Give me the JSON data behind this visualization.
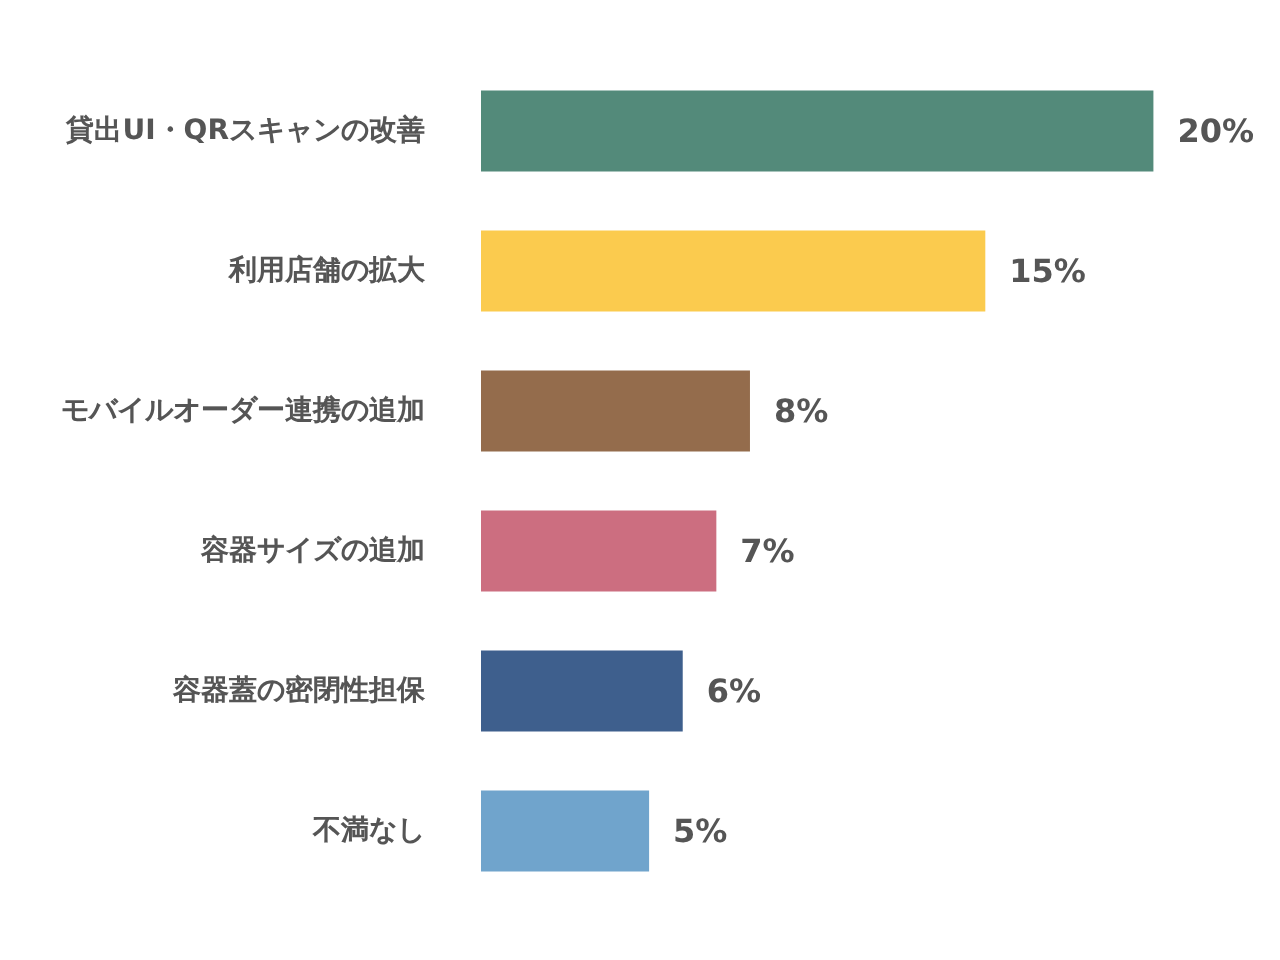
{
  "chart_data": {
    "type": "bar",
    "orientation": "horizontal",
    "data_labels": true,
    "categories": [
      "貸出UI・QRスキャンの改善",
      "利用店舗の拡大",
      "モバイルオーダー連携の追加",
      "容器サイズの追加",
      "容器蓋の密閉性担保",
      "不満なし"
    ],
    "values": [
      20,
      15,
      8,
      7,
      6,
      5
    ],
    "colors": [
      "#538a7a",
      "#fbcb4e",
      "#946c4c",
      "#cc6e80",
      "#3e5f8d",
      "#70a4cc"
    ],
    "value_labels": [
      "20%",
      "15%",
      "8%",
      "7%",
      "6%",
      "5%"
    ]
  }
}
